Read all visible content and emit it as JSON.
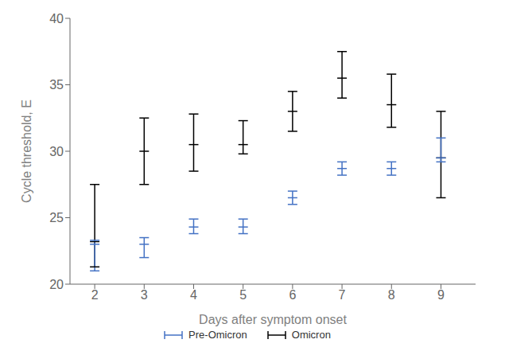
{
  "chart_data": {
    "type": "errorbar",
    "x": [
      2,
      3,
      4,
      5,
      6,
      7,
      8,
      9
    ],
    "xlabel": "Days after symptom onset",
    "ylabel": "Cycle threshold, E",
    "xlim": [
      1.5,
      9.7
    ],
    "xticks": [
      2,
      3,
      4,
      5,
      6,
      7,
      8,
      9
    ],
    "ylim": [
      20,
      40
    ],
    "yticks": [
      20,
      25,
      30,
      35,
      40
    ],
    "grid": false,
    "legend": "bottom",
    "series": [
      {
        "name": "Pre-Omicron",
        "color": "#4472c4",
        "values": [
          23.0,
          23.0,
          24.3,
          24.3,
          26.5,
          28.7,
          28.7,
          29.5
        ],
        "lo": [
          21.0,
          22.0,
          23.8,
          23.8,
          26.0,
          28.2,
          28.2,
          29.2
        ],
        "hi": [
          23.3,
          23.5,
          24.9,
          24.9,
          27.0,
          29.2,
          29.2,
          31.0
        ]
      },
      {
        "name": "Omicron",
        "color": "#000000",
        "values": [
          23.2,
          30.0,
          30.5,
          30.5,
          33.0,
          35.5,
          33.5,
          29.5
        ],
        "lo": [
          21.3,
          27.5,
          28.5,
          29.8,
          31.5,
          34.0,
          31.8,
          26.5
        ],
        "hi": [
          27.5,
          32.5,
          32.8,
          32.3,
          34.5,
          37.5,
          35.8,
          33.0
        ]
      }
    ]
  }
}
